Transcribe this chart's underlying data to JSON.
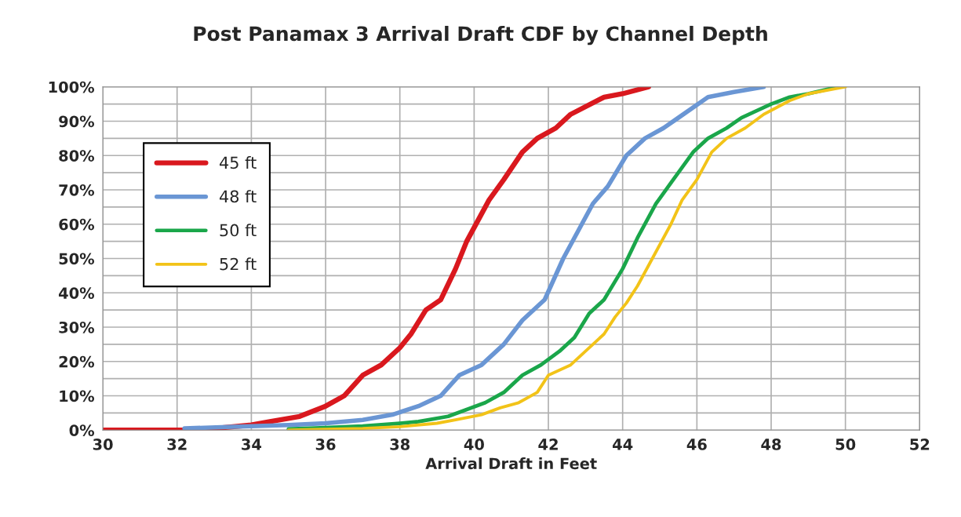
{
  "chart_data": {
    "type": "line",
    "title": "Post Panamax 3 Arrival Draft CDF by Channel Depth",
    "xlabel": "Arrival Draft in Feet",
    "series": [
      {
        "name": "45 ft",
        "color": "#d9181e",
        "x": [
          30,
          32.2,
          33,
          34,
          34.5,
          35.3,
          36,
          36.5,
          37,
          37.5,
          38,
          38.3,
          38.7,
          39.1,
          39.5,
          39.8,
          40.2,
          40.4,
          40.8,
          41.3,
          41.7,
          42.2,
          42.6,
          43.5,
          44,
          44.7
        ],
        "values": [
          0,
          0,
          0.5,
          1.5,
          2.5,
          4,
          7,
          10,
          16,
          19,
          24,
          28,
          35,
          38,
          47,
          55,
          63,
          67,
          73,
          81,
          85,
          88,
          92,
          97,
          98,
          100
        ]
      },
      {
        "name": "48 ft",
        "color": "#6a96d4",
        "x": [
          32.2,
          33.5,
          35,
          36,
          37,
          37.8,
          38.5,
          39.1,
          39.6,
          40.2,
          40.8,
          41.3,
          41.9,
          42.4,
          42.8,
          43.2,
          43.6,
          44.1,
          44.6,
          45.1,
          45.5,
          46.3,
          47,
          47.8
        ],
        "values": [
          0.5,
          1,
          1.5,
          2,
          3,
          4.5,
          7,
          10,
          16,
          19,
          25,
          32,
          38,
          50,
          58,
          66,
          71,
          80,
          85,
          88,
          91,
          97,
          98.5,
          100
        ]
      },
      {
        "name": "50 ft",
        "color": "#1aa64a",
        "x": [
          35,
          36,
          37,
          38,
          38.5,
          39.3,
          39.8,
          40.3,
          40.8,
          41.3,
          41.8,
          42.3,
          42.7,
          43.1,
          43.5,
          44,
          44.4,
          44.9,
          45.3,
          45.9,
          46.3,
          46.8,
          47.2,
          48,
          48.5,
          49,
          49.8
        ],
        "values": [
          0.3,
          0.7,
          1.2,
          2,
          2.5,
          4,
          6,
          8,
          11,
          16,
          19,
          23,
          27,
          34,
          38,
          47,
          56,
          66,
          72,
          81,
          85,
          88,
          91,
          95,
          97,
          98,
          100
        ]
      },
      {
        "name": "52 ft",
        "color": "#f2c318",
        "x": [
          35,
          37,
          38,
          39,
          39.5,
          40.2,
          40.7,
          41.2,
          41.7,
          42,
          42.6,
          43,
          43.5,
          43.8,
          44.1,
          44.4,
          44.8,
          45.3,
          45.6,
          46,
          46.4,
          46.8,
          47.3,
          47.8,
          48.5,
          49,
          50
        ],
        "values": [
          0,
          0.5,
          1,
          2,
          3,
          4.5,
          6.5,
          8,
          11,
          16,
          19,
          23,
          28,
          33,
          37,
          42,
          50,
          60,
          67,
          73,
          81,
          85,
          88,
          92,
          96,
          98,
          100
        ]
      }
    ],
    "xlim": [
      30,
      52
    ],
    "xticks": [
      30,
      32,
      34,
      36,
      38,
      40,
      42,
      44,
      46,
      48,
      50,
      52
    ],
    "ylim": [
      0,
      100
    ],
    "yticks": [
      {
        "value": 0,
        "label": "0%"
      },
      {
        "value": 5,
        "label": null
      },
      {
        "value": 10,
        "label": "10%"
      },
      {
        "value": 15,
        "label": null
      },
      {
        "value": 20,
        "label": "20%"
      },
      {
        "value": 25,
        "label": null
      },
      {
        "value": 30,
        "label": "30%"
      },
      {
        "value": 35,
        "label": null
      },
      {
        "value": 40,
        "label": "40%"
      },
      {
        "value": 45,
        "label": null
      },
      {
        "value": 50,
        "label": "50%"
      },
      {
        "value": 55,
        "label": null
      },
      {
        "value": 60,
        "label": "60%"
      },
      {
        "value": 65,
        "label": null
      },
      {
        "value": 70,
        "label": "70%"
      },
      {
        "value": 75,
        "label": null
      },
      {
        "value": 80,
        "label": "80%"
      },
      {
        "value": 85,
        "label": null
      },
      {
        "value": 90,
        "label": "90%"
      },
      {
        "value": 95,
        "label": null
      },
      {
        "value": 100,
        "label": "100%"
      }
    ],
    "grid": true,
    "legend": "top left",
    "marker": "none",
    "line_style": "solid"
  }
}
